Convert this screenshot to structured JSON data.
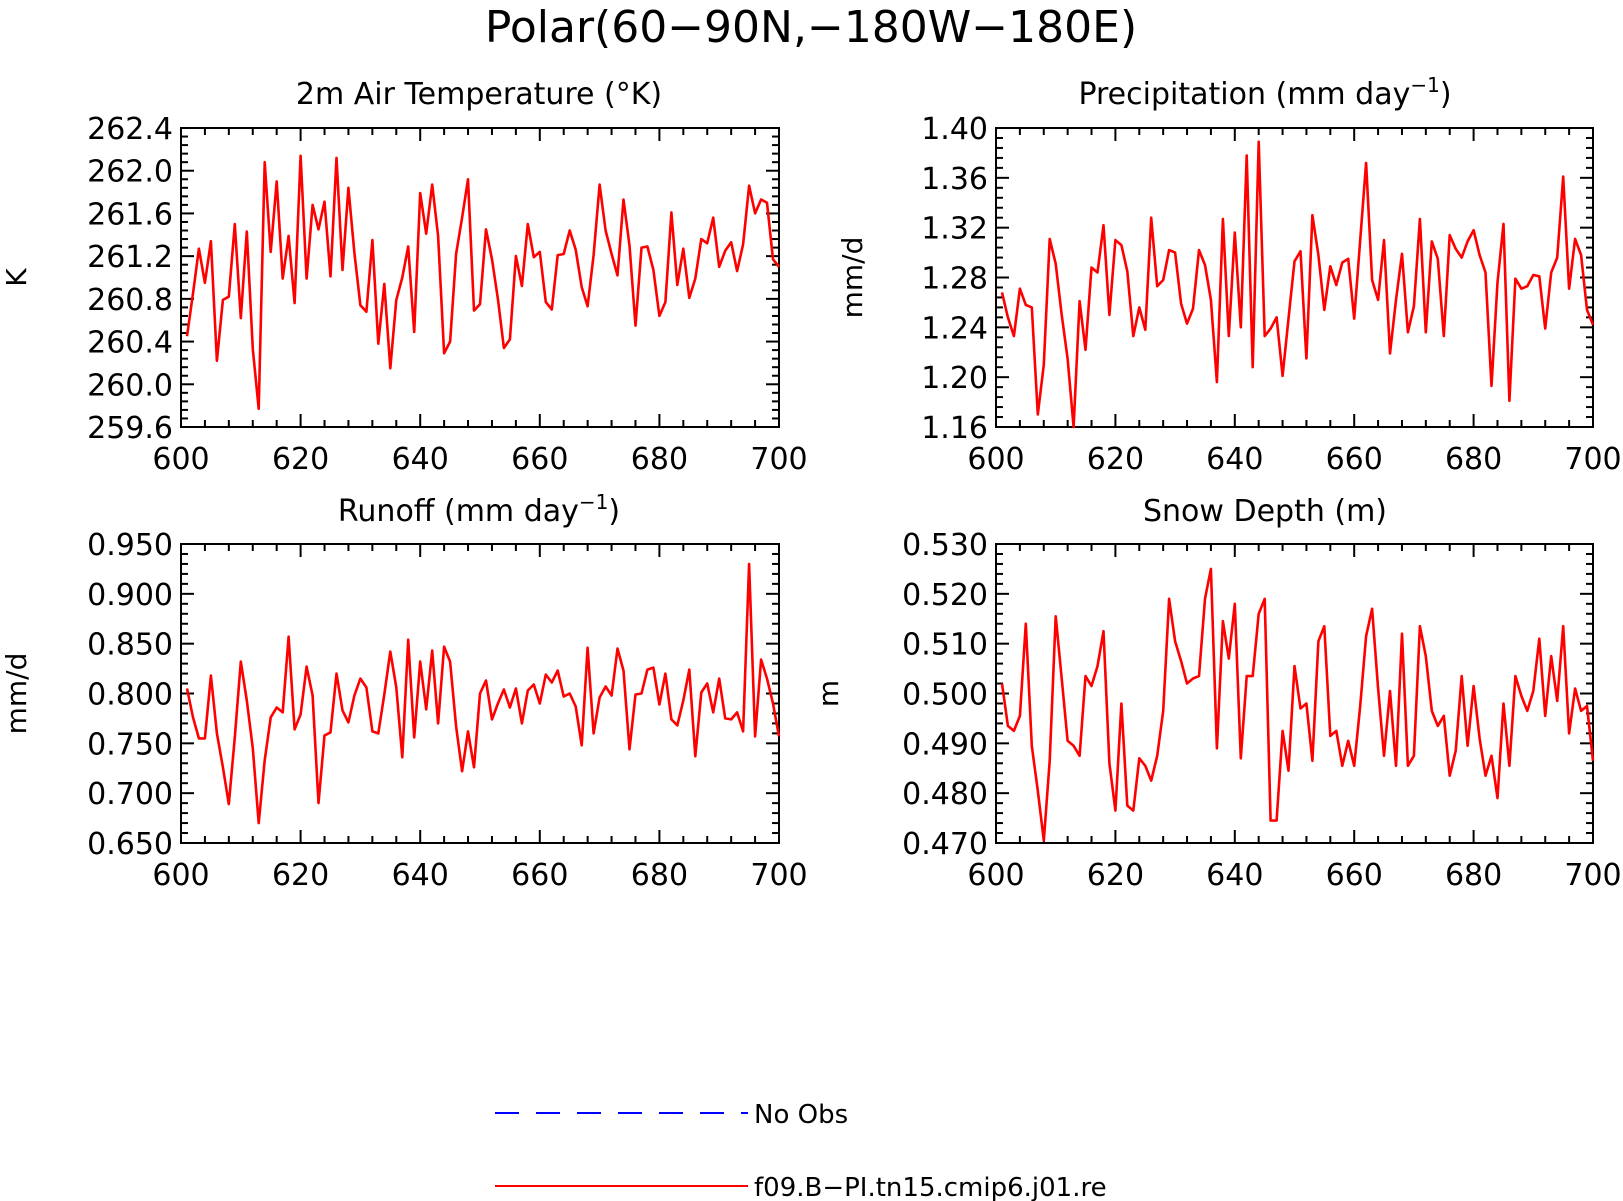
{
  "title": "Polar(60−90N,−180W−180E)",
  "colors": {
    "model": "#ff0000",
    "obs": "#0000ff",
    "axes": "#000000"
  },
  "legend": [
    {
      "label": "No Obs",
      "color": "#0000ff",
      "style": "dashed"
    },
    {
      "label": "f09.B−PI.tn15.cmip6.j01.re",
      "color": "#ff0000",
      "style": "solid"
    }
  ],
  "chart_data": [
    {
      "type": "line",
      "title": "2m Air Temperature (°K)",
      "ylabel": "K",
      "xlim": [
        600,
        700
      ],
      "ylim": [
        259.6,
        262.4
      ],
      "xticks": [
        "600",
        "620",
        "640",
        "660",
        "680",
        "700"
      ],
      "yticks": [
        "259.6",
        "260.0",
        "260.4",
        "260.8",
        "261.2",
        "261.6",
        "262.0",
        "262.4"
      ],
      "grid": false,
      "x_start": 601,
      "series": [
        {
          "name": "f09.B−PI.tn15.cmip6.j01.re",
          "values": [
            260.45,
            260.85,
            261.27,
            260.95,
            261.34,
            260.22,
            260.79,
            260.82,
            261.5,
            260.62,
            261.43,
            260.33,
            259.77,
            262.08,
            261.24,
            261.9,
            260.99,
            261.39,
            260.76,
            262.14,
            260.99,
            261.68,
            261.45,
            261.71,
            261.01,
            262.12,
            261.07,
            261.84,
            261.23,
            260.74,
            260.68,
            261.35,
            260.38,
            260.94,
            260.15,
            260.79,
            261.0,
            261.29,
            260.49,
            261.79,
            261.41,
            261.87,
            261.39,
            260.29,
            260.4,
            261.22,
            261.56,
            261.92,
            260.69,
            260.75,
            261.45,
            261.17,
            260.8,
            260.34,
            260.42,
            261.2,
            260.92,
            261.5,
            261.19,
            261.24,
            260.77,
            260.7,
            261.21,
            261.22,
            261.44,
            261.26,
            260.91,
            260.73,
            261.21,
            261.87,
            261.44,
            261.22,
            261.02,
            261.73,
            261.3,
            260.55,
            261.28,
            261.29,
            261.07,
            260.64,
            260.77,
            261.61,
            260.93,
            261.27,
            260.81,
            260.99,
            261.36,
            261.32,
            261.56,
            261.1,
            261.25,
            261.33,
            261.06,
            261.31,
            261.86,
            261.6,
            261.73,
            261.7,
            261.17,
            261.1
          ]
        }
      ]
    },
    {
      "type": "line",
      "title": "Precipitation (mm day−1)",
      "title_main": "Precipitation (mm day",
      "title_sup": "−1",
      "title_tail": ")",
      "ylabel": "mm/d",
      "xlim": [
        600,
        700
      ],
      "ylim": [
        1.16,
        1.4
      ],
      "xticks": [
        "600",
        "620",
        "640",
        "660",
        "680",
        "700"
      ],
      "yticks": [
        "1.16",
        "1.20",
        "1.24",
        "1.28",
        "1.32",
        "1.36",
        "1.40"
      ],
      "grid": false,
      "x_start": 601,
      "series": [
        {
          "name": "f09.B−PI.tn15.cmip6.j01.re",
          "values": [
            1.268,
            1.248,
            1.233,
            1.271,
            1.258,
            1.256,
            1.17,
            1.21,
            1.311,
            1.291,
            1.25,
            1.215,
            1.16,
            1.261,
            1.222,
            1.288,
            1.284,
            1.322,
            1.25,
            1.31,
            1.306,
            1.285,
            1.233,
            1.256,
            1.238,
            1.328,
            1.273,
            1.278,
            1.302,
            1.3,
            1.259,
            1.243,
            1.255,
            1.302,
            1.29,
            1.262,
            1.196,
            1.327,
            1.233,
            1.316,
            1.24,
            1.378,
            1.208,
            1.389,
            1.233,
            1.239,
            1.248,
            1.201,
            1.247,
            1.293,
            1.301,
            1.215,
            1.33,
            1.298,
            1.254,
            1.289,
            1.274,
            1.292,
            1.295,
            1.247,
            1.31,
            1.372,
            1.278,
            1.262,
            1.31,
            1.219,
            1.262,
            1.299,
            1.236,
            1.257,
            1.327,
            1.236,
            1.309,
            1.295,
            1.233,
            1.314,
            1.303,
            1.296,
            1.309,
            1.318,
            1.298,
            1.284,
            1.193,
            1.276,
            1.323,
            1.181,
            1.279,
            1.271,
            1.273,
            1.282,
            1.281,
            1.239,
            1.284,
            1.296,
            1.361,
            1.271,
            1.311,
            1.298,
            1.254,
            1.242
          ]
        }
      ]
    },
    {
      "type": "line",
      "title": "Runoff (mm day−1)",
      "title_main": "Runoff (mm day",
      "title_sup": "−1",
      "title_tail": ")",
      "ylabel": "mm/d",
      "xlim": [
        600,
        700
      ],
      "ylim": [
        0.65,
        0.95
      ],
      "xticks": [
        "600",
        "620",
        "640",
        "660",
        "680",
        "700"
      ],
      "yticks": [
        "0.650",
        "0.700",
        "0.750",
        "0.800",
        "0.850",
        "0.900",
        "0.950"
      ],
      "grid": false,
      "x_start": 601,
      "series": [
        {
          "name": "f09.B−PI.tn15.cmip6.j01.re",
          "values": [
            0.805,
            0.776,
            0.755,
            0.755,
            0.818,
            0.76,
            0.726,
            0.689,
            0.756,
            0.832,
            0.793,
            0.745,
            0.67,
            0.733,
            0.776,
            0.786,
            0.781,
            0.857,
            0.764,
            0.779,
            0.827,
            0.798,
            0.69,
            0.758,
            0.761,
            0.82,
            0.783,
            0.771,
            0.798,
            0.815,
            0.806,
            0.762,
            0.76,
            0.799,
            0.842,
            0.806,
            0.736,
            0.854,
            0.756,
            0.832,
            0.784,
            0.843,
            0.77,
            0.847,
            0.832,
            0.767,
            0.722,
            0.762,
            0.726,
            0.8,
            0.813,
            0.774,
            0.79,
            0.804,
            0.786,
            0.805,
            0.77,
            0.803,
            0.809,
            0.79,
            0.819,
            0.811,
            0.823,
            0.797,
            0.8,
            0.787,
            0.748,
            0.846,
            0.76,
            0.796,
            0.807,
            0.798,
            0.845,
            0.823,
            0.744,
            0.799,
            0.8,
            0.824,
            0.826,
            0.789,
            0.82,
            0.774,
            0.768,
            0.793,
            0.824,
            0.737,
            0.801,
            0.81,
            0.781,
            0.815,
            0.775,
            0.774,
            0.781,
            0.762,
            0.93,
            0.757,
            0.834,
            0.815,
            0.79,
            0.757
          ]
        }
      ]
    },
    {
      "type": "line",
      "title": "Snow Depth (m)",
      "ylabel": "m",
      "xlim": [
        600,
        700
      ],
      "ylim": [
        0.47,
        0.53
      ],
      "xticks": [
        "600",
        "620",
        "640",
        "660",
        "680",
        "700"
      ],
      "yticks": [
        "0.470",
        "0.480",
        "0.490",
        "0.500",
        "0.510",
        "0.520",
        "0.530"
      ],
      "grid": false,
      "x_start": 601,
      "series": [
        {
          "name": "f09.B−PI.tn15.cmip6.j01.re",
          "values": [
            0.502,
            0.4935,
            0.4925,
            0.4955,
            0.514,
            0.4895,
            0.4805,
            0.4705,
            0.4865,
            0.5155,
            0.503,
            0.4905,
            0.4895,
            0.4875,
            0.5035,
            0.5015,
            0.5055,
            0.5125,
            0.486,
            0.4765,
            0.498,
            0.4775,
            0.4765,
            0.487,
            0.4855,
            0.4825,
            0.4875,
            0.4965,
            0.519,
            0.5105,
            0.5065,
            0.502,
            0.503,
            0.5035,
            0.519,
            0.525,
            0.489,
            0.5145,
            0.507,
            0.518,
            0.487,
            0.5035,
            0.5035,
            0.516,
            0.519,
            0.4745,
            0.4745,
            0.4925,
            0.4845,
            0.5055,
            0.497,
            0.498,
            0.4865,
            0.5105,
            0.5135,
            0.4915,
            0.4925,
            0.4855,
            0.4905,
            0.4855,
            0.4975,
            0.5115,
            0.517,
            0.501,
            0.4875,
            0.5005,
            0.4855,
            0.512,
            0.4855,
            0.4875,
            0.5135,
            0.5075,
            0.4965,
            0.4935,
            0.4955,
            0.4835,
            0.4885,
            0.5035,
            0.4895,
            0.5015,
            0.491,
            0.4835,
            0.4875,
            0.479,
            0.498,
            0.4855,
            0.5035,
            0.4995,
            0.4965,
            0.5005,
            0.511,
            0.4955,
            0.5075,
            0.4985,
            0.5135,
            0.492,
            0.501,
            0.4965,
            0.4975,
            0.4865
          ]
        }
      ]
    }
  ]
}
